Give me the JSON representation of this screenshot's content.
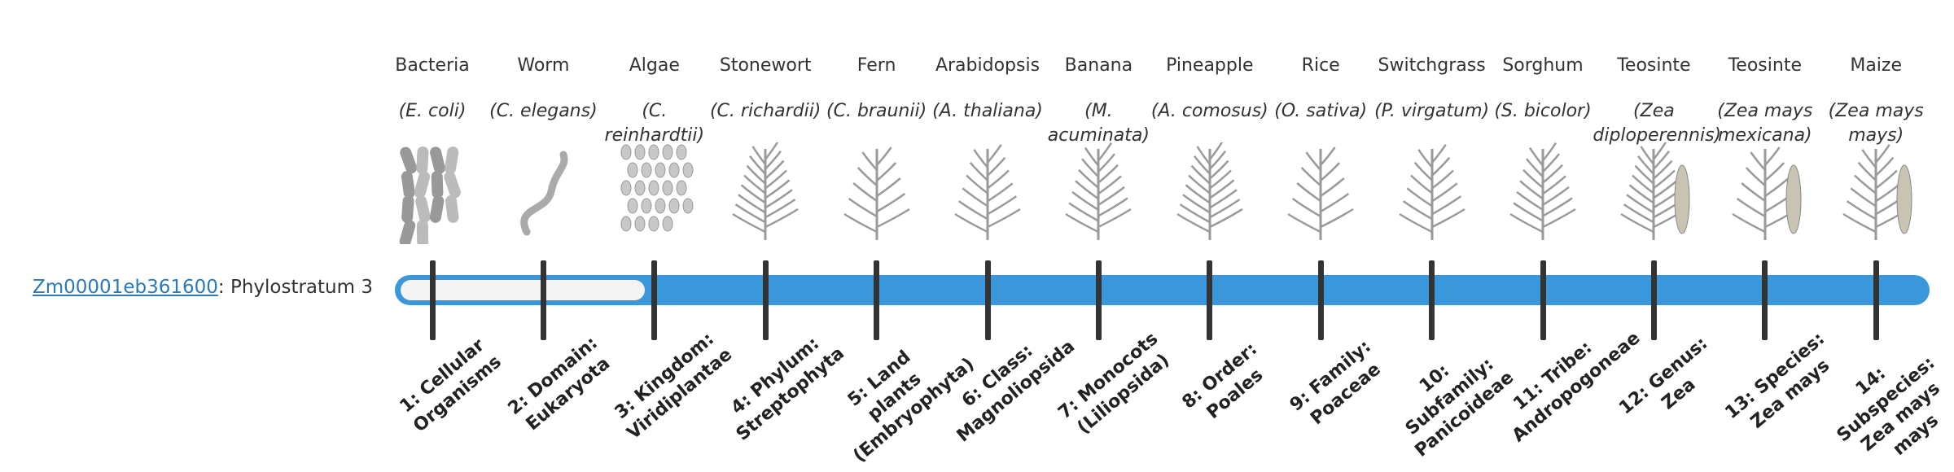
{
  "gene": {
    "id": "Zm00001eb361600",
    "label": ": Phylostratum 3"
  },
  "columns": [
    {
      "name": "Bacteria",
      "species": "(E. coli)",
      "stratum": "1: Cellular Organisms"
    },
    {
      "name": "Worm",
      "species": "(C. elegans)",
      "stratum": "2: Domain: Eukaryota"
    },
    {
      "name": "Algae",
      "species": "(C. reinhardtii)",
      "stratum": "3: Kingdom: Viridiplantae"
    },
    {
      "name": "Stonewort",
      "species": "(C. richardii)",
      "stratum": "4: Phylum: Streptophyta"
    },
    {
      "name": "Fern",
      "species": "(C. braunii)",
      "stratum": "5: Land plants (Embryophyta)"
    },
    {
      "name": "Arabidopsis",
      "species": "(A. thaliana)",
      "stratum": "6: Class: Magnoliopsida"
    },
    {
      "name": "Banana",
      "species": "(M. acuminata)",
      "stratum": "7: Monocots (Liliopsida)"
    },
    {
      "name": "Pineapple",
      "species": "(A. comosus)",
      "stratum": "8: Order: Poales"
    },
    {
      "name": "Rice",
      "species": "(O. sativa)",
      "stratum": "9: Family: Poaceae"
    },
    {
      "name": "Switchgrass",
      "species": "(P. virgatum)",
      "stratum": "10: Subfamily: Panicoideae"
    },
    {
      "name": "Sorghum",
      "species": "(S. bicolor)",
      "stratum": "11: Tribe: Andropogoneae"
    },
    {
      "name": "Teosinte",
      "species": "(Zea diploperennis)",
      "stratum": "12: Genus: Zea"
    },
    {
      "name": "Teosinte",
      "species": "(Zea mays mexicana)",
      "stratum": "13: Species: Zea mays"
    },
    {
      "name": "Maize",
      "species": "(Zea mays mays)",
      "stratum": "14: Subspecies: Zea mays mays"
    }
  ]
}
